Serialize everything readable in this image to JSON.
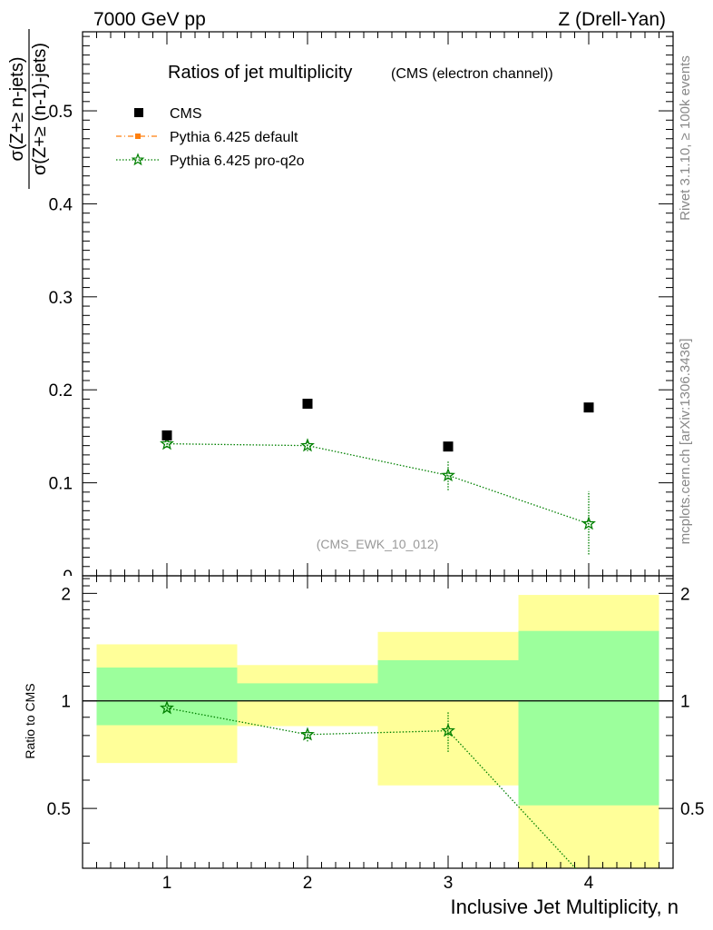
{
  "header": {
    "left": "7000 GeV pp",
    "right": "Z (Drell-Yan)"
  },
  "side_labels": {
    "rivet": "Rivet 3.1.10, ≥ 100k events",
    "mcplots": "mcplots.cern.ch [arXiv:1306.3436]"
  },
  "chart_data": {
    "type": "scatter",
    "title": "Ratios of jet multiplicity",
    "subtitle": "(CMS (electron channel))",
    "analysis_tag": "(CMS_EWK_10_012)",
    "ylabel_num": "σ(Z+≥ n-jets)",
    "ylabel_den": "σ(Z+≥ (n-1)-jets)",
    "xlabel": "Inclusive Jet Multiplicity, n",
    "ratio_ylabel": "Ratio to CMS",
    "xlim": [
      0.4,
      4.6
    ],
    "ylim": [
      0,
      0.585
    ],
    "ratio_ylim": [
      0.34,
      2.24
    ],
    "x_ticks": [
      "1",
      "2",
      "3",
      "4"
    ],
    "y_ticks": [
      "0.1",
      "0.2",
      "0.3",
      "0.4",
      "0.5"
    ],
    "y_zero_label": "0",
    "ratio_ticks": [
      "0.5",
      "1",
      "2"
    ],
    "legend": [
      {
        "label": "CMS",
        "color": "#000000",
        "marker": "square"
      },
      {
        "label": "Pythia 6.425 default",
        "color": "#ff7f0e",
        "marker": "square"
      },
      {
        "label": "Pythia 6.425 pro-q2o",
        "color": "#008000",
        "marker": "star"
      }
    ],
    "series": [
      {
        "name": "CMS",
        "x": [
          1,
          2,
          3,
          4
        ],
        "y": [
          0.151,
          0.185,
          0.139,
          0.181
        ]
      },
      {
        "name": "Pythia 6.425 pro-q2o",
        "x": [
          1,
          2,
          3,
          4
        ],
        "y": [
          0.142,
          0.14,
          0.108,
          0.056
        ],
        "yerr_low": [
          0.004,
          0.006,
          0.016,
          0.033
        ],
        "yerr_high": [
          0.004,
          0.006,
          0.016,
          0.035
        ]
      }
    ],
    "ratio": {
      "bins": [
        [
          0.5,
          1.5
        ],
        [
          1.5,
          2.5
        ],
        [
          2.5,
          3.5
        ],
        [
          3.5,
          4.5
        ]
      ],
      "band_1sigma": [
        [
          0.855,
          1.24
        ],
        [
          1.0,
          1.12
        ],
        [
          1.0,
          1.3
        ],
        [
          0.51,
          1.57
        ]
      ],
      "band_2sigma": [
        [
          0.67,
          1.44
        ],
        [
          0.85,
          1.26
        ],
        [
          0.58,
          1.56
        ],
        [
          0.3,
          1.98
        ]
      ],
      "pro_q2o": {
        "x": [
          1,
          2,
          3,
          4
        ],
        "y": [
          0.955,
          0.805,
          0.825,
          0.31
        ],
        "yerr": [
          0.015,
          0.035,
          0.105,
          0.2
        ]
      }
    },
    "colors": {
      "band_1sigma": "#9cff9c",
      "band_2sigma": "#ffff99",
      "cms": "#000000",
      "default": "#ff7f0e",
      "pro_q2o": "#008000"
    }
  }
}
